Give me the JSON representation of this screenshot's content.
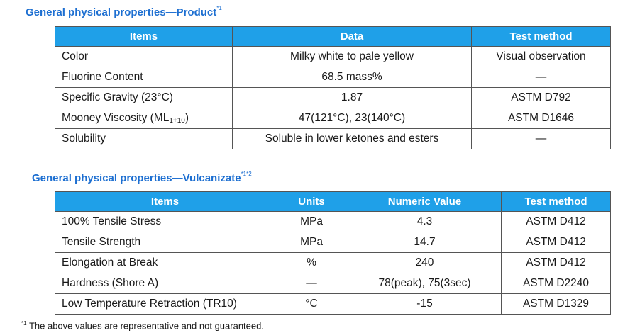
{
  "product": {
    "title": "General physical properties—Product",
    "title_mark": "*1",
    "headers": [
      "Items",
      "Data",
      "Test method"
    ],
    "rows": [
      {
        "item": "Color",
        "data": "Milky white to pale yellow",
        "method": "Visual observation"
      },
      {
        "item": "Fluorine Content",
        "data": "68.5 mass%",
        "method": "—"
      },
      {
        "item": "Specific Gravity (23°C)",
        "data": "1.87",
        "method": "ASTM D792"
      },
      {
        "item": "Mooney Viscosity (ML",
        "item_sub": "1+10",
        "item_end": ")",
        "data": "47(121°C), 23(140°C)",
        "method": "ASTM D1646"
      },
      {
        "item": "Solubility",
        "data": "Soluble in lower ketones and esters",
        "method": "—"
      }
    ]
  },
  "vulcanizate": {
    "title": "General physical properties—Vulcanizate",
    "title_mark": "*1*2",
    "headers": [
      "Items",
      "Units",
      "Numeric Value",
      "Test method"
    ],
    "rows": [
      {
        "item": "100% Tensile Stress",
        "unit": "MPa",
        "value": "4.3",
        "method": "ASTM D412"
      },
      {
        "item": "Tensile Strength",
        "unit": "MPa",
        "value": "14.7",
        "method": "ASTM D412"
      },
      {
        "item": "Elongation at Break",
        "unit": "%",
        "value": "240",
        "method": "ASTM D412"
      },
      {
        "item": "Hardness (Shore A)",
        "unit": "—",
        "value": "78(peak), 75(3sec)",
        "method": "ASTM D2240"
      },
      {
        "item": "Low Temperature Retraction (TR10)",
        "unit": "°C",
        "value": "-15",
        "method": "ASTM D1329"
      }
    ]
  },
  "footnote": {
    "mark": "*1",
    "text": "The above values are representative and not guaranteed."
  },
  "colors": {
    "header_bg": "#1fa0e8",
    "heading_text": "#1d6fd1"
  }
}
